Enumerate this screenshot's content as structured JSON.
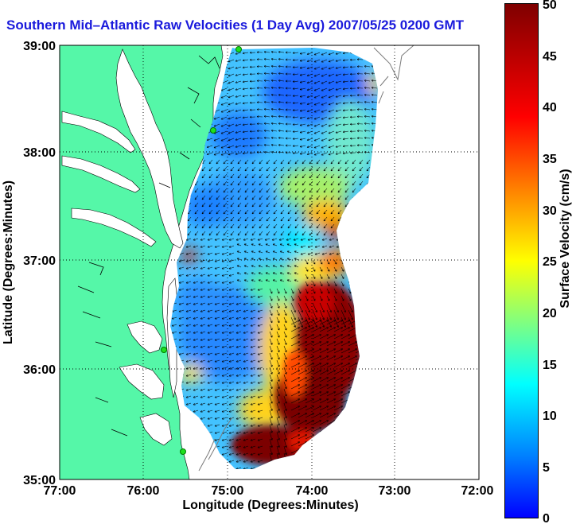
{
  "title": "Southern Mid–Atlantic Raw Velocities (1 Day Avg) 2007/05/25 0200 GMT",
  "map": {
    "xlabel": "Longitude (Degrees:Minutes)",
    "ylabel": "Latitude (Degrees:Minutes)",
    "x_ticks": [
      "77:00",
      "76:00",
      "75:00",
      "74:00",
      "73:00",
      "72:00"
    ],
    "y_ticks": [
      "39:00",
      "38:00",
      "37:00",
      "36:00",
      "35:00"
    ],
    "colors": {
      "land": "#55f7a8",
      "water": "#ffffff",
      "title": "#1a1adc"
    }
  },
  "colorbar": {
    "label": "Surface Velocity (cm/s)",
    "ticks": [
      "50",
      "45",
      "40",
      "35",
      "30",
      "25",
      "20",
      "15",
      "10",
      "5",
      "0"
    ],
    "range": [
      0,
      50
    ],
    "colormap": "jet"
  }
}
